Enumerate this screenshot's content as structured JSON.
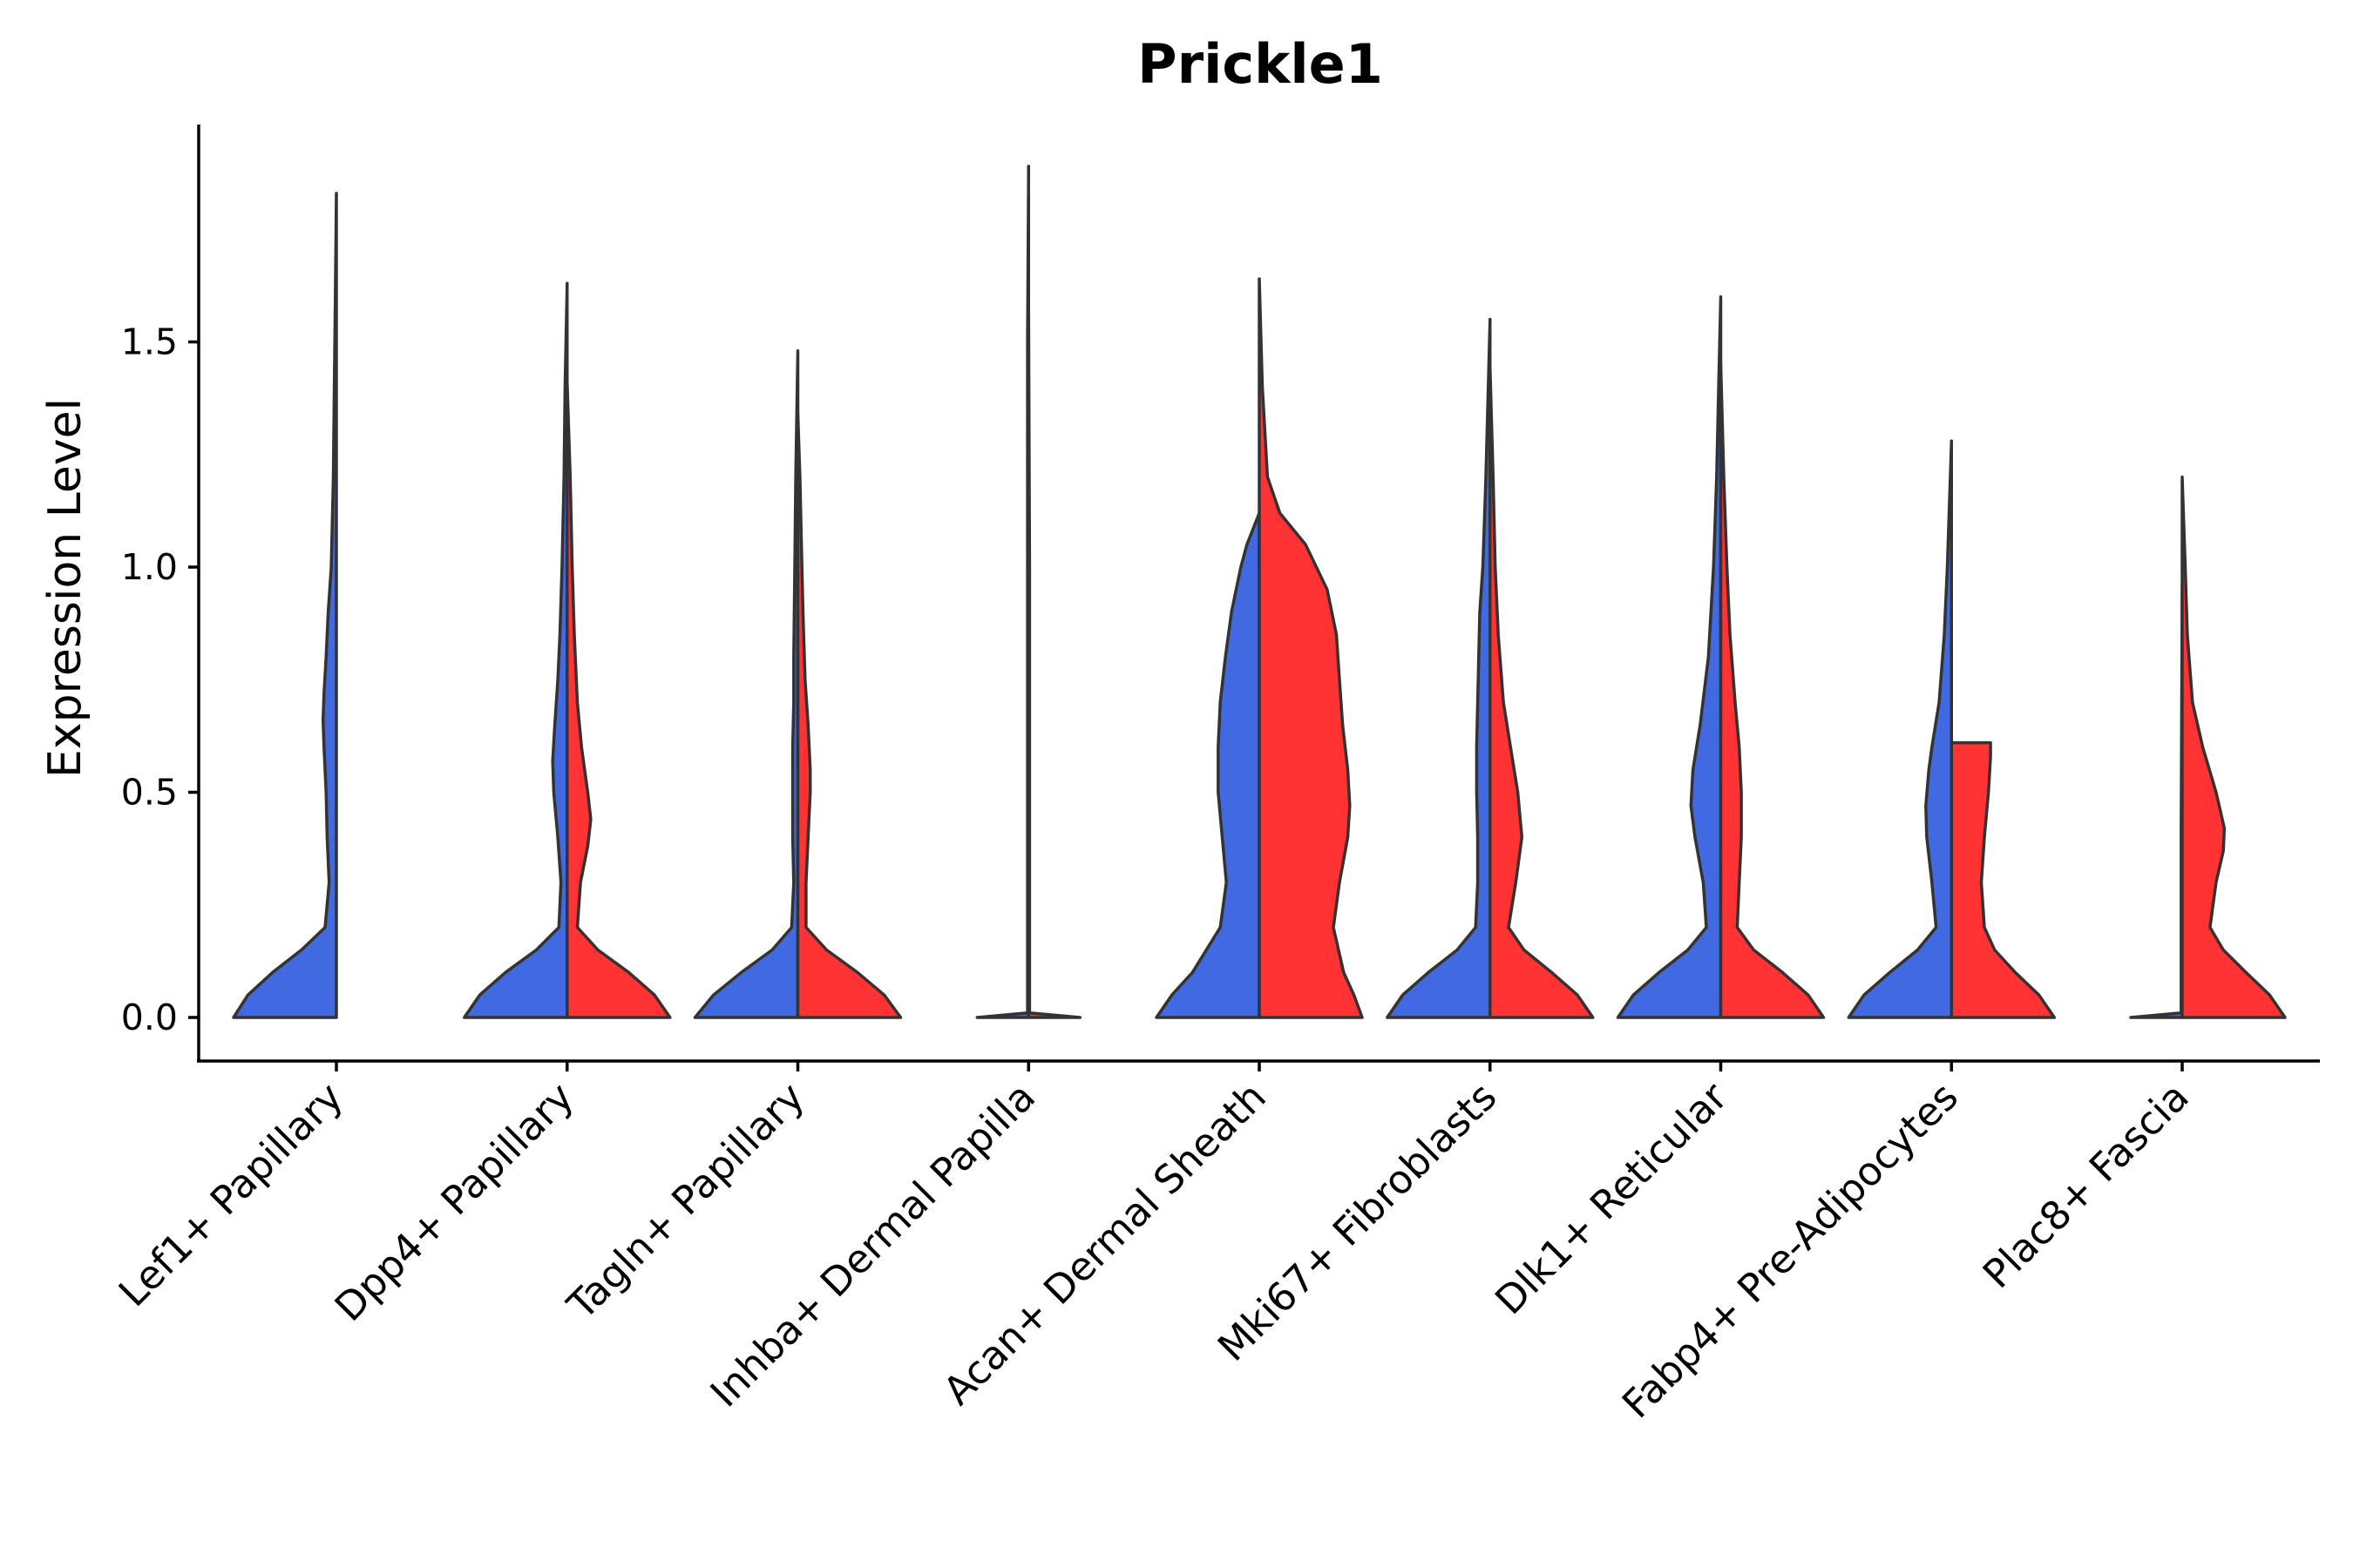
{
  "chart_data": {
    "type": "violin",
    "title": "Prickle1",
    "xlabel": "",
    "ylabel": "Expression Level",
    "ylim": [
      -0.1,
      1.98
    ],
    "yticks": [
      0.0,
      0.5,
      1.0,
      1.5
    ],
    "ytick_labels": [
      "0.0",
      "0.5",
      "1.0",
      "1.5"
    ],
    "grid": false,
    "legend": "none",
    "colors": {
      "condition1": "#4169E1",
      "condition2": "#FF3333",
      "outline": "#333333"
    },
    "categories": [
      "Lef1+ Papillary",
      "Dpp4+ Papillary",
      "Tagln+ Papillary",
      "Inhba+ Dermal Papilla",
      "Acan+ Dermal Sheath",
      "Mki67+ Fibroblasts",
      "Dlk1+ Reticular",
      "Fabp4+ Pre-Adipocytes",
      "Plac8+ Fascia"
    ],
    "series": [
      {
        "name": "condition1",
        "color": "#4169E1",
        "violins": [
          {
            "max": 1.83,
            "profile": [
              [
                0,
                1.0
              ],
              [
                0.05,
                0.86
              ],
              [
                0.1,
                0.62
              ],
              [
                0.15,
                0.34
              ],
              [
                0.2,
                0.11
              ],
              [
                0.3,
                0.07
              ],
              [
                0.4,
                0.09
              ],
              [
                0.5,
                0.1
              ],
              [
                0.6,
                0.12
              ],
              [
                0.66,
                0.13
              ],
              [
                0.72,
                0.12
              ],
              [
                0.8,
                0.1
              ],
              [
                0.9,
                0.08
              ],
              [
                1.0,
                0.05
              ],
              [
                1.2,
                0.03
              ],
              [
                1.4,
                0.02
              ],
              [
                1.6,
                0.01
              ],
              [
                1.83,
                0.0
              ]
            ]
          },
          {
            "max": 1.63,
            "profile": [
              [
                0,
                1.0
              ],
              [
                0.05,
                0.85
              ],
              [
                0.1,
                0.6
              ],
              [
                0.15,
                0.3
              ],
              [
                0.2,
                0.08
              ],
              [
                0.3,
                0.06
              ],
              [
                0.4,
                0.09
              ],
              [
                0.5,
                0.13
              ],
              [
                0.57,
                0.14
              ],
              [
                0.65,
                0.12
              ],
              [
                0.75,
                0.09
              ],
              [
                0.85,
                0.07
              ],
              [
                1.0,
                0.05
              ],
              [
                1.2,
                0.03
              ],
              [
                1.4,
                0.02
              ],
              [
                1.63,
                0.0
              ]
            ]
          },
          {
            "max": 1.48,
            "profile": [
              [
                0,
                1.0
              ],
              [
                0.05,
                0.82
              ],
              [
                0.1,
                0.55
              ],
              [
                0.15,
                0.25
              ],
              [
                0.2,
                0.06
              ],
              [
                0.3,
                0.04
              ],
              [
                0.4,
                0.05
              ],
              [
                0.5,
                0.05
              ],
              [
                0.6,
                0.05
              ],
              [
                0.7,
                0.04
              ],
              [
                0.8,
                0.04
              ],
              [
                1.0,
                0.03
              ],
              [
                1.2,
                0.02
              ],
              [
                1.48,
                0.0
              ]
            ]
          },
          {
            "max": 1.89,
            "profile": [
              [
                0,
                0.5
              ],
              [
                0.01,
                0.01
              ],
              [
                0.5,
                0.01
              ],
              [
                1.0,
                0.01
              ],
              [
                1.5,
                0.01
              ],
              [
                1.89,
                0.0
              ]
            ]
          },
          {
            "max": 1.12,
            "profile": [
              [
                0,
                1.0
              ],
              [
                0.05,
                0.85
              ],
              [
                0.1,
                0.65
              ],
              [
                0.2,
                0.38
              ],
              [
                0.3,
                0.32
              ],
              [
                0.4,
                0.36
              ],
              [
                0.5,
                0.4
              ],
              [
                0.6,
                0.4
              ],
              [
                0.7,
                0.38
              ],
              [
                0.8,
                0.33
              ],
              [
                0.9,
                0.27
              ],
              [
                1.0,
                0.18
              ],
              [
                1.05,
                0.12
              ],
              [
                1.12,
                0.0
              ]
            ]
          },
          {
            "max": 1.55,
            "profile": [
              [
                0,
                1.0
              ],
              [
                0.05,
                0.85
              ],
              [
                0.1,
                0.6
              ],
              [
                0.15,
                0.32
              ],
              [
                0.2,
                0.14
              ],
              [
                0.3,
                0.12
              ],
              [
                0.4,
                0.12
              ],
              [
                0.5,
                0.13
              ],
              [
                0.6,
                0.13
              ],
              [
                0.7,
                0.12
              ],
              [
                0.8,
                0.11
              ],
              [
                0.9,
                0.1
              ],
              [
                1.0,
                0.07
              ],
              [
                1.2,
                0.04
              ],
              [
                1.55,
                0.0
              ]
            ]
          },
          {
            "max": 1.6,
            "profile": [
              [
                0,
                1.0
              ],
              [
                0.05,
                0.85
              ],
              [
                0.1,
                0.6
              ],
              [
                0.15,
                0.32
              ],
              [
                0.2,
                0.14
              ],
              [
                0.3,
                0.17
              ],
              [
                0.4,
                0.25
              ],
              [
                0.47,
                0.29
              ],
              [
                0.55,
                0.27
              ],
              [
                0.65,
                0.2
              ],
              [
                0.8,
                0.12
              ],
              [
                1.0,
                0.07
              ],
              [
                1.2,
                0.04
              ],
              [
                1.4,
                0.02
              ],
              [
                1.6,
                0.0
              ]
            ]
          },
          {
            "max": 1.28,
            "profile": [
              [
                0,
                1.0
              ],
              [
                0.05,
                0.85
              ],
              [
                0.1,
                0.6
              ],
              [
                0.15,
                0.33
              ],
              [
                0.2,
                0.15
              ],
              [
                0.3,
                0.19
              ],
              [
                0.4,
                0.24
              ],
              [
                0.47,
                0.25
              ],
              [
                0.55,
                0.22
              ],
              [
                0.6,
                0.19
              ],
              [
                0.7,
                0.12
              ],
              [
                0.85,
                0.07
              ],
              [
                1.0,
                0.04
              ],
              [
                1.28,
                0.0
              ]
            ]
          },
          {
            "max": 0.96,
            "profile": [
              [
                0,
                0.5
              ],
              [
                0.01,
                0.01
              ],
              [
                0.4,
                0.01
              ],
              [
                0.96,
                0.0
              ]
            ]
          }
        ]
      },
      {
        "name": "condition2",
        "color": "#FF3333",
        "violins": [
          null,
          {
            "max": 1.41,
            "profile": [
              [
                0,
                1.0
              ],
              [
                0.05,
                0.85
              ],
              [
                0.1,
                0.6
              ],
              [
                0.15,
                0.3
              ],
              [
                0.2,
                0.1
              ],
              [
                0.3,
                0.13
              ],
              [
                0.38,
                0.2
              ],
              [
                0.44,
                0.23
              ],
              [
                0.5,
                0.2
              ],
              [
                0.6,
                0.14
              ],
              [
                0.7,
                0.1
              ],
              [
                0.85,
                0.07
              ],
              [
                1.0,
                0.05
              ],
              [
                1.2,
                0.03
              ],
              [
                1.41,
                0.0
              ]
            ]
          },
          {
            "max": 1.34,
            "profile": [
              [
                0,
                1.0
              ],
              [
                0.05,
                0.84
              ],
              [
                0.1,
                0.58
              ],
              [
                0.15,
                0.28
              ],
              [
                0.2,
                0.08
              ],
              [
                0.3,
                0.08
              ],
              [
                0.4,
                0.1
              ],
              [
                0.5,
                0.12
              ],
              [
                0.55,
                0.12
              ],
              [
                0.65,
                0.1
              ],
              [
                0.75,
                0.07
              ],
              [
                0.9,
                0.05
              ],
              [
                1.0,
                0.04
              ],
              [
                1.2,
                0.02
              ],
              [
                1.34,
                0.0
              ]
            ]
          },
          {
            "max": 1.56,
            "profile": [
              [
                0,
                0.5
              ],
              [
                0.01,
                0.01
              ],
              [
                0.5,
                0.01
              ],
              [
                1.0,
                0.01
              ],
              [
                1.56,
                0.0
              ]
            ]
          },
          {
            "max": 1.64,
            "profile": [
              [
                0,
                1.0
              ],
              [
                0.05,
                0.92
              ],
              [
                0.1,
                0.82
              ],
              [
                0.2,
                0.72
              ],
              [
                0.3,
                0.78
              ],
              [
                0.4,
                0.86
              ],
              [
                0.47,
                0.88
              ],
              [
                0.55,
                0.86
              ],
              [
                0.65,
                0.81
              ],
              [
                0.75,
                0.78
              ],
              [
                0.85,
                0.75
              ],
              [
                0.95,
                0.66
              ],
              [
                1.05,
                0.45
              ],
              [
                1.12,
                0.2
              ],
              [
                1.2,
                0.08
              ],
              [
                1.4,
                0.03
              ],
              [
                1.64,
                0.0
              ]
            ]
          },
          {
            "max": 1.44,
            "profile": [
              [
                0,
                1.0
              ],
              [
                0.05,
                0.85
              ],
              [
                0.1,
                0.6
              ],
              [
                0.15,
                0.33
              ],
              [
                0.2,
                0.18
              ],
              [
                0.3,
                0.25
              ],
              [
                0.4,
                0.31
              ],
              [
                0.5,
                0.27
              ],
              [
                0.6,
                0.2
              ],
              [
                0.7,
                0.13
              ],
              [
                0.85,
                0.08
              ],
              [
                1.0,
                0.05
              ],
              [
                1.2,
                0.03
              ],
              [
                1.44,
                0.0
              ]
            ]
          },
          {
            "max": 1.45,
            "profile": [
              [
                0,
                1.0
              ],
              [
                0.05,
                0.85
              ],
              [
                0.1,
                0.6
              ],
              [
                0.15,
                0.32
              ],
              [
                0.2,
                0.16
              ],
              [
                0.3,
                0.18
              ],
              [
                0.4,
                0.2
              ],
              [
                0.5,
                0.2
              ],
              [
                0.6,
                0.18
              ],
              [
                0.7,
                0.14
              ],
              [
                0.85,
                0.09
              ],
              [
                1.0,
                0.06
              ],
              [
                1.2,
                0.03
              ],
              [
                1.45,
                0.0
              ]
            ]
          },
          {
            "max": 0.61,
            "profile": [
              [
                0,
                1.0
              ],
              [
                0.05,
                0.85
              ],
              [
                0.1,
                0.62
              ],
              [
                0.15,
                0.42
              ],
              [
                0.2,
                0.32
              ],
              [
                0.3,
                0.29
              ],
              [
                0.4,
                0.32
              ],
              [
                0.5,
                0.36
              ],
              [
                0.58,
                0.38
              ],
              [
                0.61,
                0.38
              ]
            ]
          },
          {
            "max": 1.2,
            "profile": [
              [
                0,
                1.0
              ],
              [
                0.05,
                0.85
              ],
              [
                0.1,
                0.62
              ],
              [
                0.15,
                0.4
              ],
              [
                0.2,
                0.27
              ],
              [
                0.3,
                0.33
              ],
              [
                0.37,
                0.4
              ],
              [
                0.42,
                0.41
              ],
              [
                0.5,
                0.33
              ],
              [
                0.6,
                0.2
              ],
              [
                0.7,
                0.1
              ],
              [
                0.85,
                0.05
              ],
              [
                1.0,
                0.03
              ],
              [
                1.2,
                0.0
              ]
            ]
          }
        ]
      }
    ]
  }
}
